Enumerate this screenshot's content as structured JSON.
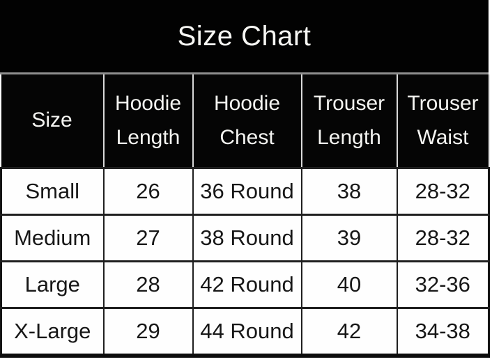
{
  "title": "Size Chart",
  "chart_data": {
    "type": "table",
    "title": "Size Chart",
    "columns": [
      "Size",
      "Hoodie Length",
      "Hoodie Chest",
      "Trouser Length",
      "Trouser Waist"
    ],
    "rows": [
      [
        "Small",
        "26",
        "36 Round",
        "38",
        "28-32"
      ],
      [
        "Medium",
        "27",
        "38 Round",
        "39",
        "28-32"
      ],
      [
        "Large",
        "28",
        "42 Round",
        "40",
        "32-36"
      ],
      [
        "X-Large",
        "29",
        "44 Round",
        "42",
        "34-38"
      ]
    ],
    "layout_hints": {
      "header_background": "black",
      "body_background": "white",
      "grid": "on"
    }
  },
  "colors": {
    "title_band_bg": "#020202",
    "title_text": "#f7f7f4",
    "title_divider": "#8f8f8f",
    "header_bg": "#050505",
    "header_text": "#f5f5f2",
    "header_separator": "#d9d9d9",
    "body_bg": "#fefefe",
    "body_text": "#171717",
    "grid_line": "#1f1f1f",
    "bottom_border": "#0c0c0c"
  }
}
